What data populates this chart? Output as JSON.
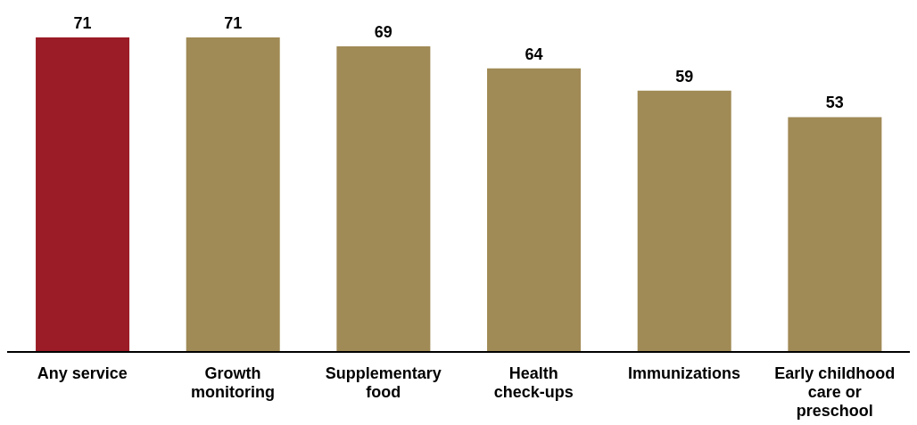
{
  "chart_data": {
    "type": "bar",
    "categories": [
      "Any service",
      "Growth monitoring",
      "Supplementary food",
      "Health check-ups",
      "Immunizations",
      "Early childhood care or preschool"
    ],
    "values": [
      71,
      71,
      69,
      64,
      59,
      53
    ],
    "colors": [
      "#9b1c26",
      "#a08a55",
      "#a08a55",
      "#a08a55",
      "#a08a55",
      "#a08a55"
    ],
    "data_labels": true,
    "grid": false
  }
}
